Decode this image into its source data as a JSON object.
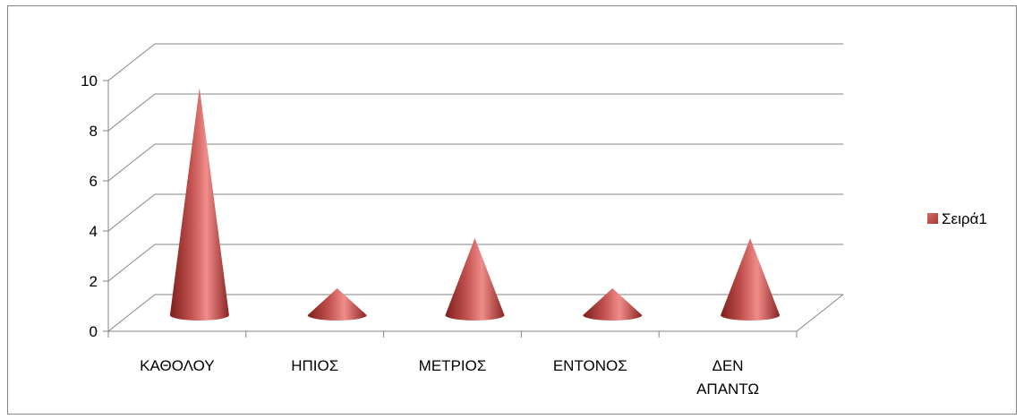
{
  "chart_data": {
    "type": "bar",
    "shape": "3d-cone",
    "title": "",
    "xlabel": "",
    "ylabel": "",
    "categories": [
      [
        "ΚΑΘΟΛΟΥ"
      ],
      [
        "ΗΠΙΟΣ"
      ],
      [
        "ΜΕΤΡΙΟΣ"
      ],
      [
        "ΕΝΤΟΝΟΣ"
      ],
      [
        "ΔΕΝ",
        "ΑΠΑΝΤΩ"
      ]
    ],
    "series": [
      {
        "name": "Σειρά1",
        "values": [
          9,
          1,
          3,
          1,
          3
        ],
        "color": "#c0504d"
      }
    ],
    "ylim": [
      0,
      10
    ],
    "yticks": [
      "0",
      "2",
      "4",
      "6",
      "8",
      "10"
    ],
    "grid": true,
    "legend": "right"
  }
}
